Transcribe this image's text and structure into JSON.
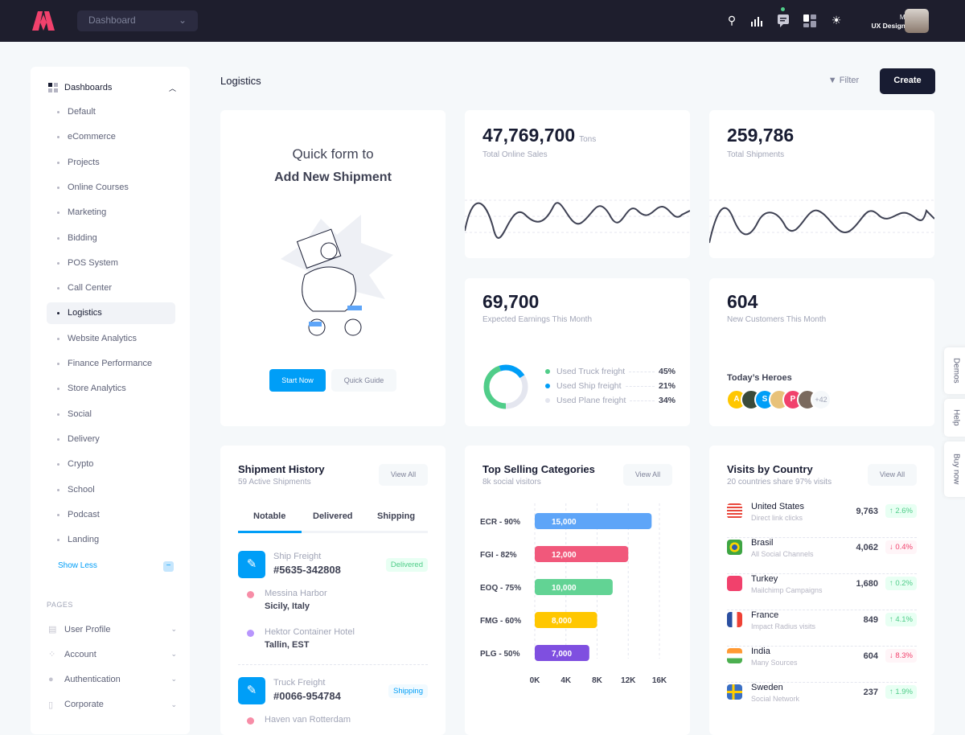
{
  "header": {
    "dropdown": "Dashboard",
    "user_name": "Max",
    "user_role": "UX Designer",
    "icons": [
      "search-icon",
      "chart-icon",
      "chat-icon",
      "layout-icon",
      "sun-icon"
    ]
  },
  "sidebar": {
    "group": "Dashboards",
    "items": [
      "Default",
      "eCommerce",
      "Projects",
      "Online Courses",
      "Marketing",
      "Bidding",
      "POS System",
      "Call Center",
      "Logistics",
      "Website Analytics",
      "Finance Performance",
      "Store Analytics",
      "Social",
      "Delivery",
      "Crypto",
      "School",
      "Podcast",
      "Landing"
    ],
    "active": "Logistics",
    "show_less": "Show Less",
    "pages_heading": "PAGES",
    "pages": [
      "User Profile",
      "Account",
      "Authentication",
      "Corporate"
    ]
  },
  "toolbar": {
    "page_title": "Logistics",
    "filter": "Filter",
    "create": "Create"
  },
  "quick_form": {
    "line1": "Quick form to",
    "line2": "Add New Shipment",
    "start": "Start Now",
    "guide": "Quick Guide"
  },
  "stats": {
    "sales": {
      "value": "47,769,700",
      "unit": "Tons",
      "label": "Total Online Sales"
    },
    "shipments": {
      "value": "259,786",
      "label": "Total Shipments"
    },
    "earnings": {
      "value": "69,700",
      "label": "Expected Earnings This Month",
      "legend": [
        {
          "label": "Used Truck freight",
          "value": "45%",
          "color": "#50cd89"
        },
        {
          "label": "Used Ship freight",
          "value": "21%",
          "color": "#009ef7"
        },
        {
          "label": "Used Plane freight",
          "value": "34%",
          "color": "#e4e6ef"
        }
      ]
    },
    "customers": {
      "value": "604",
      "label": "New Customers This Month",
      "heroes_title": "Today’s Heroes",
      "heroes": [
        "A",
        "",
        "S",
        "",
        "P",
        ""
      ],
      "more": "+42"
    }
  },
  "shipment_history": {
    "title": "Shipment History",
    "subtitle": "59 Active Shipments",
    "view_all": "View All",
    "tabs": [
      "Notable",
      "Delivered",
      "Shipping"
    ],
    "items": [
      {
        "type": "Ship Freight",
        "id": "#5635-342808",
        "status": "Delivered",
        "stops": [
          {
            "place": "Messina Harbor",
            "city": "Sicily, Italy"
          },
          {
            "place": "Hektor Container Hotel",
            "city": "Tallin, EST"
          }
        ]
      },
      {
        "type": "Truck Freight",
        "id": "#0066-954784",
        "status": "Shipping",
        "stops": [
          {
            "place": "Haven van Rotterdam",
            "city": ""
          }
        ]
      }
    ]
  },
  "top_selling": {
    "title": "Top Selling Categories",
    "subtitle": "8k social visitors",
    "view_all": "View All"
  },
  "chart_data": {
    "type": "bar",
    "orientation": "horizontal",
    "categories": [
      "ECR - 90%",
      "FGI - 82%",
      "EOQ - 75%",
      "FMG - 60%",
      "PLG - 50%"
    ],
    "values": [
      15000,
      12000,
      10000,
      8000,
      7000
    ],
    "data_labels": [
      "15,000",
      "12,000",
      "10,000",
      "8,000",
      "7,000"
    ],
    "colors": [
      "#5ea5f8",
      "#f1587b",
      "#62d394",
      "#ffc700",
      "#7f4fe0"
    ],
    "xlim": [
      0,
      16000
    ],
    "xticks": [
      "0K",
      "4K",
      "8K",
      "12K",
      "16K"
    ],
    "grid": true
  },
  "visits": {
    "title": "Visits by Country",
    "subtitle": "20 countries share 97% visits",
    "view_all": "View All",
    "rows": [
      {
        "country": "United States",
        "source": "Direct link clicks",
        "visits": "9,763",
        "change": "2.6%",
        "dir": "up"
      },
      {
        "country": "Brasil",
        "source": "All Social Channels",
        "visits": "4,062",
        "change": "0.4%",
        "dir": "down"
      },
      {
        "country": "Turkey",
        "source": "Mailchimp Campaigns",
        "visits": "1,680",
        "change": "0.2%",
        "dir": "up"
      },
      {
        "country": "France",
        "source": "Impact Radius visits",
        "visits": "849",
        "change": "4.1%",
        "dir": "up"
      },
      {
        "country": "India",
        "source": "Many Sources",
        "visits": "604",
        "change": "8.3%",
        "dir": "down"
      },
      {
        "country": "Sweden",
        "source": "Social Network",
        "visits": "237",
        "change": "1.9%",
        "dir": "up"
      }
    ]
  },
  "side_tabs": [
    "Demos",
    "Help",
    "Buy now"
  ]
}
